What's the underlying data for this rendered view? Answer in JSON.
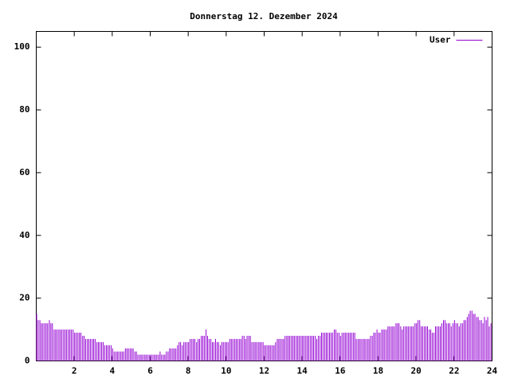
{
  "chart_data": {
    "type": "impulse",
    "title": "Donnerstag 12. Dezember 2024",
    "series": [
      {
        "name": "User",
        "color": "#9400d3",
        "x": [
          0,
          0.08,
          0.17,
          0.25,
          0.33,
          0.42,
          0.5,
          0.58,
          0.67,
          0.75,
          0.83,
          0.92,
          1,
          1.08,
          1.17,
          1.25,
          1.33,
          1.42,
          1.5,
          1.58,
          1.67,
          1.75,
          1.83,
          1.92,
          2,
          2.08,
          2.17,
          2.25,
          2.33,
          2.42,
          2.5,
          2.58,
          2.67,
          2.75,
          2.83,
          2.92,
          3,
          3.08,
          3.17,
          3.25,
          3.33,
          3.42,
          3.5,
          3.58,
          3.67,
          3.75,
          3.83,
          3.92,
          4,
          4.08,
          4.17,
          4.25,
          4.33,
          4.42,
          4.5,
          4.58,
          4.67,
          4.75,
          4.83,
          4.92,
          5,
          5.08,
          5.17,
          5.25,
          5.33,
          5.42,
          5.5,
          5.58,
          5.67,
          5.75,
          5.83,
          5.92,
          6,
          6.08,
          6.17,
          6.25,
          6.33,
          6.42,
          6.5,
          6.58,
          6.67,
          6.75,
          6.83,
          6.92,
          7,
          7.08,
          7.17,
          7.25,
          7.33,
          7.42,
          7.5,
          7.58,
          7.67,
          7.75,
          7.83,
          7.92,
          8,
          8.08,
          8.17,
          8.25,
          8.33,
          8.42,
          8.5,
          8.58,
          8.67,
          8.75,
          8.83,
          8.92,
          9,
          9.08,
          9.17,
          9.25,
          9.33,
          9.42,
          9.5,
          9.58,
          9.67,
          9.75,
          9.83,
          9.92,
          10,
          10.08,
          10.17,
          10.25,
          10.33,
          10.42,
          10.5,
          10.58,
          10.67,
          10.75,
          10.83,
          10.92,
          11,
          11.08,
          11.17,
          11.25,
          11.33,
          11.42,
          11.5,
          11.58,
          11.67,
          11.75,
          11.83,
          11.92,
          12,
          12.08,
          12.17,
          12.25,
          12.33,
          12.42,
          12.5,
          12.58,
          12.67,
          12.75,
          12.83,
          12.92,
          13,
          13.08,
          13.17,
          13.25,
          13.33,
          13.42,
          13.5,
          13.58,
          13.67,
          13.75,
          13.83,
          13.92,
          14,
          14.08,
          14.17,
          14.25,
          14.33,
          14.42,
          14.5,
          14.58,
          14.67,
          14.75,
          14.83,
          14.92,
          15,
          15.08,
          15.17,
          15.25,
          15.33,
          15.42,
          15.5,
          15.58,
          15.67,
          15.75,
          15.83,
          15.92,
          16,
          16.08,
          16.17,
          16.25,
          16.33,
          16.42,
          16.5,
          16.58,
          16.67,
          16.75,
          16.83,
          16.92,
          17,
          17.08,
          17.17,
          17.25,
          17.33,
          17.42,
          17.5,
          17.58,
          17.67,
          17.75,
          17.83,
          17.92,
          18,
          18.08,
          18.17,
          18.25,
          18.33,
          18.42,
          18.5,
          18.58,
          18.67,
          18.75,
          18.83,
          18.92,
          19,
          19.08,
          19.17,
          19.25,
          19.33,
          19.42,
          19.5,
          19.58,
          19.67,
          19.75,
          19.83,
          19.92,
          20,
          20.08,
          20.17,
          20.25,
          20.33,
          20.42,
          20.5,
          20.58,
          20.67,
          20.75,
          20.83,
          20.92,
          21,
          21.08,
          21.17,
          21.25,
          21.33,
          21.42,
          21.5,
          21.58,
          21.67,
          21.75,
          21.83,
          21.92,
          22,
          22.08,
          22.17,
          22.25,
          22.33,
          22.42,
          22.5,
          22.58,
          22.67,
          22.75,
          22.83,
          22.92,
          23,
          23.08,
          23.17,
          23.25,
          23.33,
          23.42,
          23.5,
          23.58,
          23.67,
          23.75,
          23.83,
          23.92
        ],
        "values": [
          15,
          13,
          13,
          12,
          12,
          12,
          12,
          12,
          13,
          12,
          12,
          10,
          10,
          10,
          10,
          10,
          10,
          10,
          10,
          10,
          10,
          10,
          10,
          10,
          9,
          9,
          9,
          9,
          9,
          8,
          8,
          7,
          7,
          7,
          7,
          7,
          7,
          7,
          6,
          6,
          6,
          6,
          6,
          5,
          5,
          5,
          5,
          5,
          4,
          3,
          3,
          3,
          3,
          3,
          3,
          3,
          4,
          4,
          4,
          4,
          4,
          4,
          3,
          3,
          2,
          2,
          2,
          2,
          2,
          2,
          2,
          2,
          2,
          2,
          2,
          2,
          2,
          2,
          3,
          2,
          2,
          2,
          3,
          3,
          4,
          4,
          4,
          4,
          4,
          5,
          6,
          6,
          5,
          6,
          6,
          6,
          6,
          7,
          7,
          7,
          7,
          6,
          7,
          7,
          8,
          8,
          8,
          10,
          8,
          7,
          7,
          6,
          6,
          7,
          6,
          6,
          5,
          6,
          6,
          6,
          6,
          6,
          7,
          7,
          7,
          7,
          7,
          7,
          7,
          7,
          8,
          8,
          7,
          8,
          8,
          8,
          6,
          6,
          6,
          6,
          6,
          6,
          6,
          6,
          5,
          5,
          5,
          5,
          5,
          5,
          5,
          6,
          7,
          7,
          7,
          7,
          7,
          8,
          8,
          8,
          8,
          8,
          8,
          8,
          8,
          8,
          8,
          8,
          8,
          8,
          8,
          8,
          8,
          8,
          8,
          8,
          8,
          7,
          8,
          8,
          9,
          9,
          9,
          9,
          9,
          9,
          9,
          9,
          10,
          10,
          9,
          9,
          8,
          9,
          9,
          9,
          9,
          9,
          9,
          9,
          9,
          9,
          7,
          7,
          7,
          7,
          7,
          7,
          7,
          7,
          7,
          8,
          8,
          9,
          9,
          10,
          9,
          9,
          10,
          10,
          10,
          10,
          11,
          11,
          11,
          11,
          11,
          12,
          12,
          12,
          11,
          10,
          11,
          11,
          11,
          11,
          11,
          11,
          11,
          12,
          12,
          13,
          13,
          11,
          11,
          11,
          11,
          11,
          10,
          10,
          9,
          9,
          11,
          11,
          11,
          11,
          12,
          13,
          13,
          12,
          12,
          12,
          11,
          12,
          13,
          12,
          12,
          11,
          12,
          12,
          13,
          13,
          14,
          15,
          16,
          16,
          15,
          15,
          14,
          14,
          13,
          13,
          12,
          14,
          13,
          14,
          11,
          12
        ]
      }
    ],
    "xlim": [
      0,
      24
    ],
    "xticks": [
      2,
      4,
      6,
      8,
      10,
      12,
      14,
      16,
      18,
      20,
      22,
      24
    ],
    "ylim": [
      0,
      105
    ],
    "yticks": [
      0,
      20,
      40,
      60,
      80,
      100
    ],
    "legend": "top-right"
  }
}
